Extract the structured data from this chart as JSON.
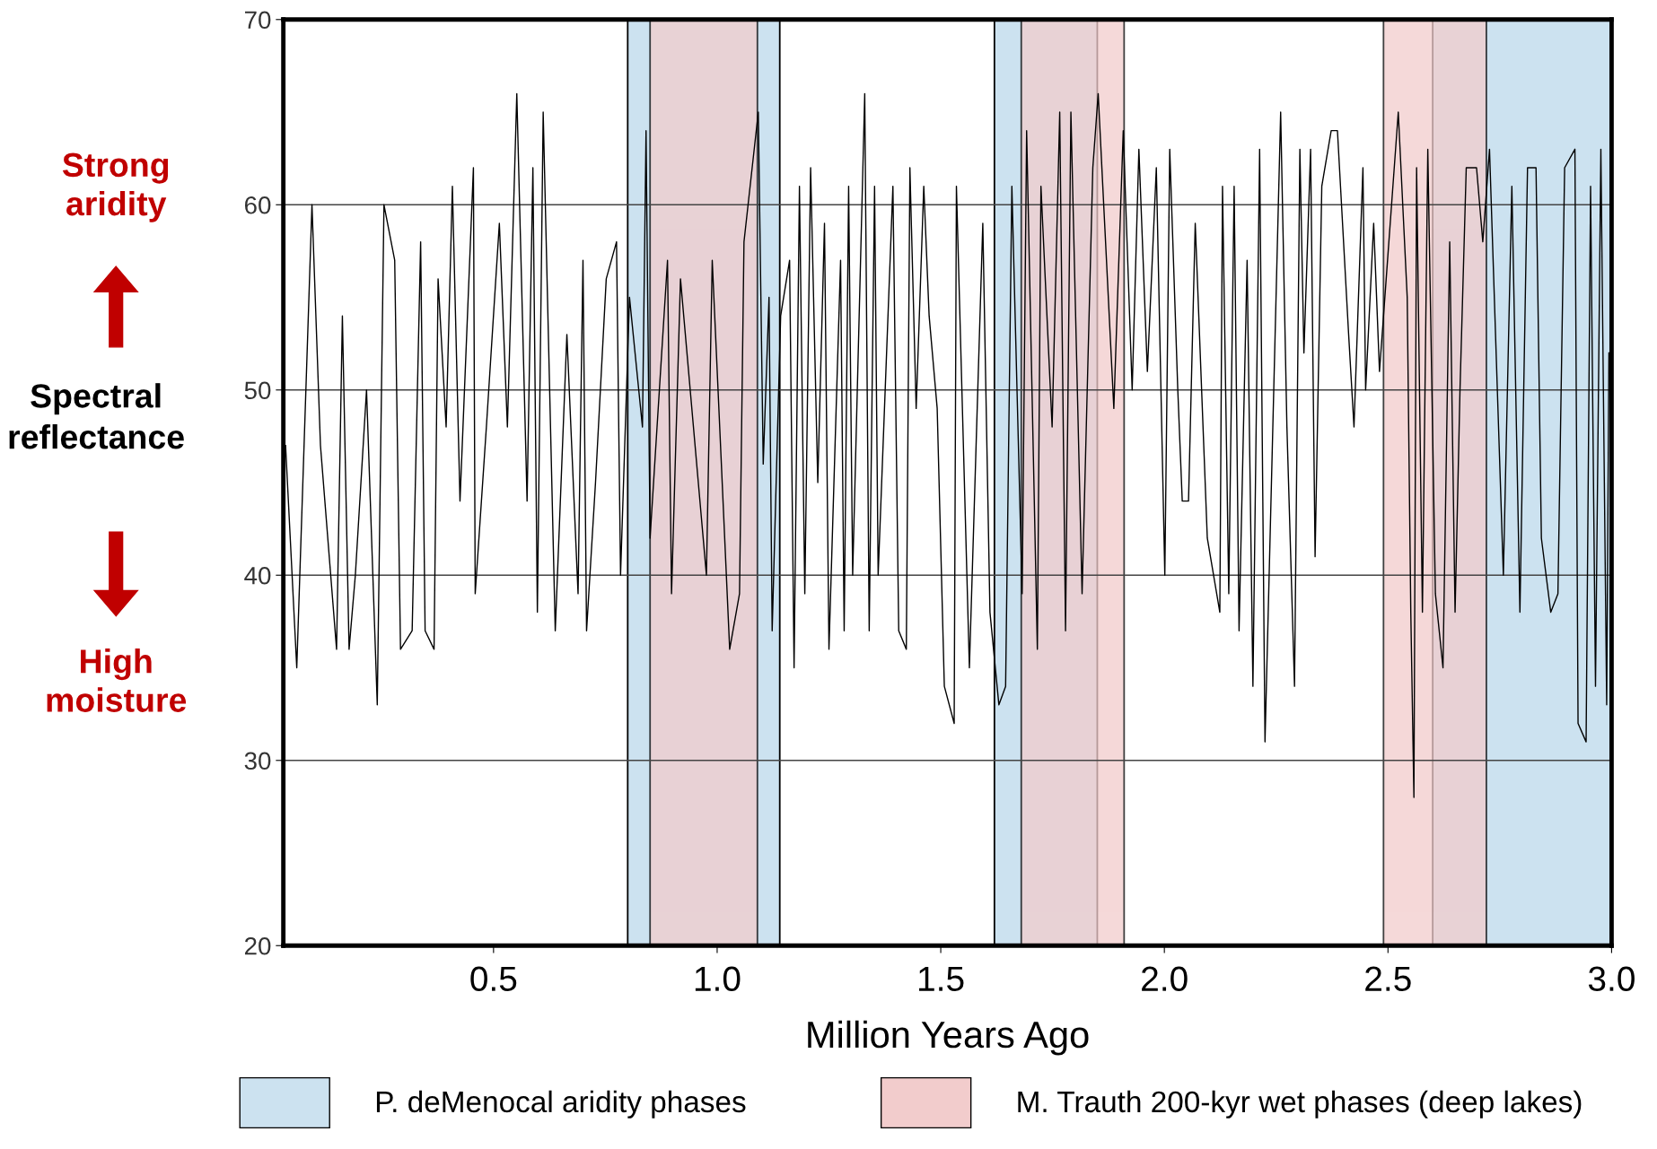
{
  "chart_data": {
    "type": "line",
    "xlabel": "Million Years Ago",
    "ylabel": "Spectral\nreflectance",
    "annotations": [
      "Strong\naridity",
      "High\nmoisture"
    ],
    "xlim": [
      0.03,
      3.0
    ],
    "xticks": [
      {
        "value": 0.5,
        "label": "0.5"
      },
      {
        "value": 1.0,
        "label": "1.0"
      },
      {
        "value": 1.5,
        "label": "1.5"
      },
      {
        "value": 2.0,
        "label": "2.0"
      },
      {
        "value": 2.5,
        "label": "2.5"
      },
      {
        "value": 3.0,
        "label": "3.0"
      }
    ],
    "ylim": [
      20,
      70
    ],
    "yticks": [
      20,
      30,
      40,
      50,
      60,
      70
    ],
    "grid": "y",
    "legend": "bottom",
    "line_style": "solid",
    "marker": "none",
    "bands": [
      {
        "axis": "x",
        "from": 0.8,
        "to": 1.14,
        "label": "P. deMenocal aridity phases",
        "color": "#cce2f0"
      },
      {
        "axis": "x",
        "from": 1.62,
        "to": 1.85,
        "color": "#cce2f0"
      },
      {
        "axis": "x",
        "from": 2.6,
        "to": 3.0,
        "color": "#cce2f0"
      },
      {
        "axis": "x",
        "from": 0.85,
        "to": 1.09,
        "label": "M. Trauth 200-kyr wet phases (deep lakes)",
        "color": "#f2cccc"
      },
      {
        "axis": "x",
        "from": 1.68,
        "to": 1.91,
        "color": "#f2cccc"
      },
      {
        "axis": "x",
        "from": 2.49,
        "to": 2.72,
        "color": "#f2cccc"
      }
    ],
    "series": [
      {
        "color": "#000000",
        "x": [
          0.035,
          0.06,
          0.094,
          0.113,
          0.149,
          0.162,
          0.177,
          0.191,
          0.216,
          0.24,
          0.255,
          0.279,
          0.292,
          0.318,
          0.337,
          0.347,
          0.367,
          0.376,
          0.394,
          0.408,
          0.425,
          0.455,
          0.459,
          0.484,
          0.513,
          0.531,
          0.552,
          0.575,
          0.588,
          0.598,
          0.611,
          0.638,
          0.664,
          0.689,
          0.7,
          0.708,
          0.728,
          0.752,
          0.775,
          0.784,
          0.804,
          0.833,
          0.841,
          0.85,
          0.889,
          0.898,
          0.918,
          0.976,
          0.989,
          1.028,
          1.05,
          1.06,
          1.092,
          1.103,
          1.116,
          1.123,
          1.142,
          1.162,
          1.172,
          1.184,
          1.196,
          1.209,
          1.225,
          1.24,
          1.25,
          1.276,
          1.284,
          1.294,
          1.303,
          1.33,
          1.34,
          1.352,
          1.36,
          1.393,
          1.406,
          1.423,
          1.431,
          1.445,
          1.462,
          1.474,
          1.492,
          1.508,
          1.53,
          1.535,
          1.564,
          1.594,
          1.61,
          1.63,
          1.645,
          1.659,
          1.682,
          1.692,
          1.716,
          1.724,
          1.749,
          1.766,
          1.779,
          1.791,
          1.816,
          1.84,
          1.852,
          1.887,
          1.908,
          1.928,
          1.943,
          1.962,
          1.982,
          2.001,
          2.012,
          2.03,
          2.04,
          2.054,
          2.069,
          2.096,
          2.124,
          2.13,
          2.144,
          2.156,
          2.167,
          2.185,
          2.198,
          2.213,
          2.225,
          2.26,
          2.274,
          2.291,
          2.303,
          2.312,
          2.327,
          2.337,
          2.352,
          2.373,
          2.387,
          2.412,
          2.424,
          2.444,
          2.45,
          2.468,
          2.481,
          2.523,
          2.543,
          2.551,
          2.558,
          2.564,
          2.577,
          2.589,
          2.606,
          2.623,
          2.638,
          2.65,
          2.661,
          2.675,
          2.698,
          2.712,
          2.727,
          2.758,
          2.777,
          2.795,
          2.812,
          2.831,
          2.843,
          2.864,
          2.88,
          2.895,
          2.918,
          2.925,
          2.943,
          2.953,
          2.964,
          2.976,
          2.989,
          2.994
        ],
        "values": [
          47,
          35,
          60,
          47,
          36,
          54,
          36,
          40,
          50,
          33,
          60,
          57,
          36,
          37,
          58,
          37,
          36,
          56,
          48,
          61,
          44,
          62,
          39,
          48,
          59,
          48,
          66,
          44,
          62,
          38,
          65,
          37,
          53,
          39,
          57,
          37,
          45,
          56,
          58,
          40,
          55,
          48,
          64,
          42,
          57,
          39,
          56,
          40,
          57,
          36,
          39,
          58,
          65,
          46,
          55,
          37,
          54,
          57,
          35,
          61,
          39,
          62,
          45,
          59,
          36,
          57,
          37,
          61,
          40,
          66,
          37,
          61,
          40,
          61,
          37,
          36,
          62,
          49,
          61,
          54,
          49,
          34,
          32,
          61,
          35,
          59,
          38,
          33,
          34,
          61,
          39,
          64,
          36,
          61,
          48,
          65,
          37,
          65,
          39,
          62,
          66,
          49,
          64,
          50,
          63,
          51,
          62,
          40,
          63,
          50,
          44,
          44,
          59,
          42,
          38,
          61,
          39,
          61,
          37,
          57,
          34,
          63,
          31,
          65,
          48,
          34,
          63,
          52,
          63,
          41,
          61,
          64,
          64,
          53,
          48,
          62,
          50,
          59,
          51,
          65,
          55,
          38,
          28,
          62,
          38,
          63,
          39,
          35,
          58,
          38,
          50,
          62,
          62,
          58,
          63,
          40,
          61,
          38,
          62,
          62,
          42,
          38,
          39,
          62,
          63,
          32,
          31,
          61,
          34,
          63,
          33,
          52
        ]
      }
    ]
  }
}
